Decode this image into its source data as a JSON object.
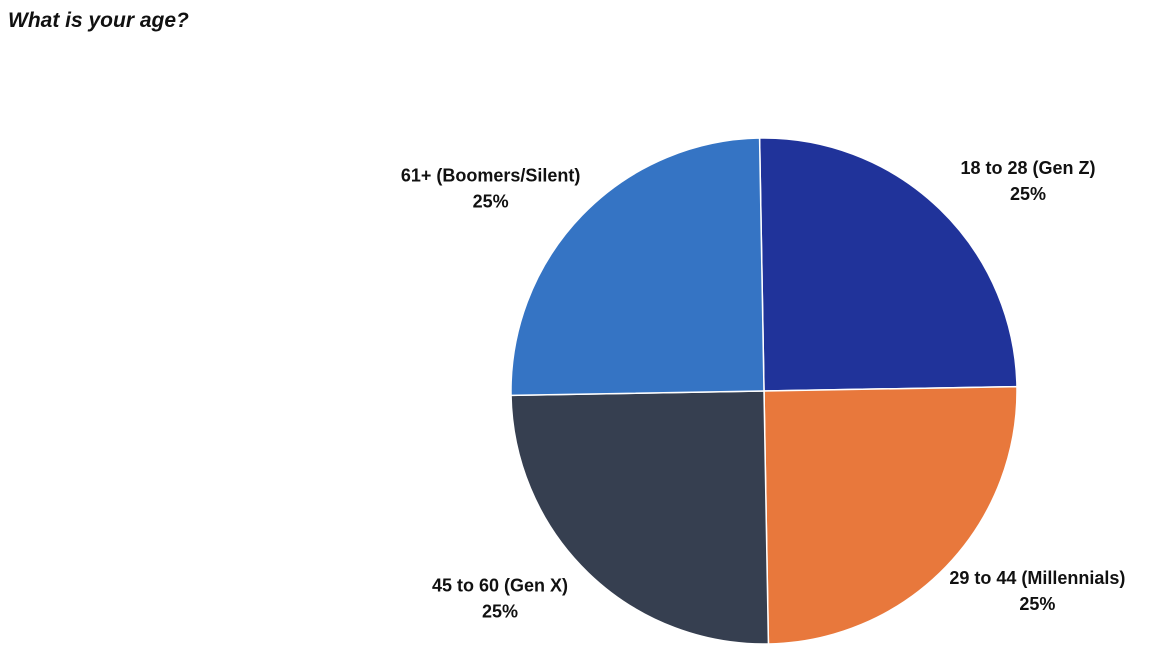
{
  "chart_data": {
    "type": "pie",
    "title": "What is your age?",
    "categories": [
      "18 to 28 (Gen Z)",
      "29 to 44 (Millennials)",
      "45 to 60 (Gen X)",
      "61+ (Boomers/Silent)"
    ],
    "values": [
      25,
      25,
      25,
      25
    ],
    "value_labels": [
      "25%",
      "25%",
      "25%",
      "25%"
    ],
    "colors": [
      "#20339a",
      "#e8783c",
      "#363f50",
      "#3574c4"
    ]
  }
}
